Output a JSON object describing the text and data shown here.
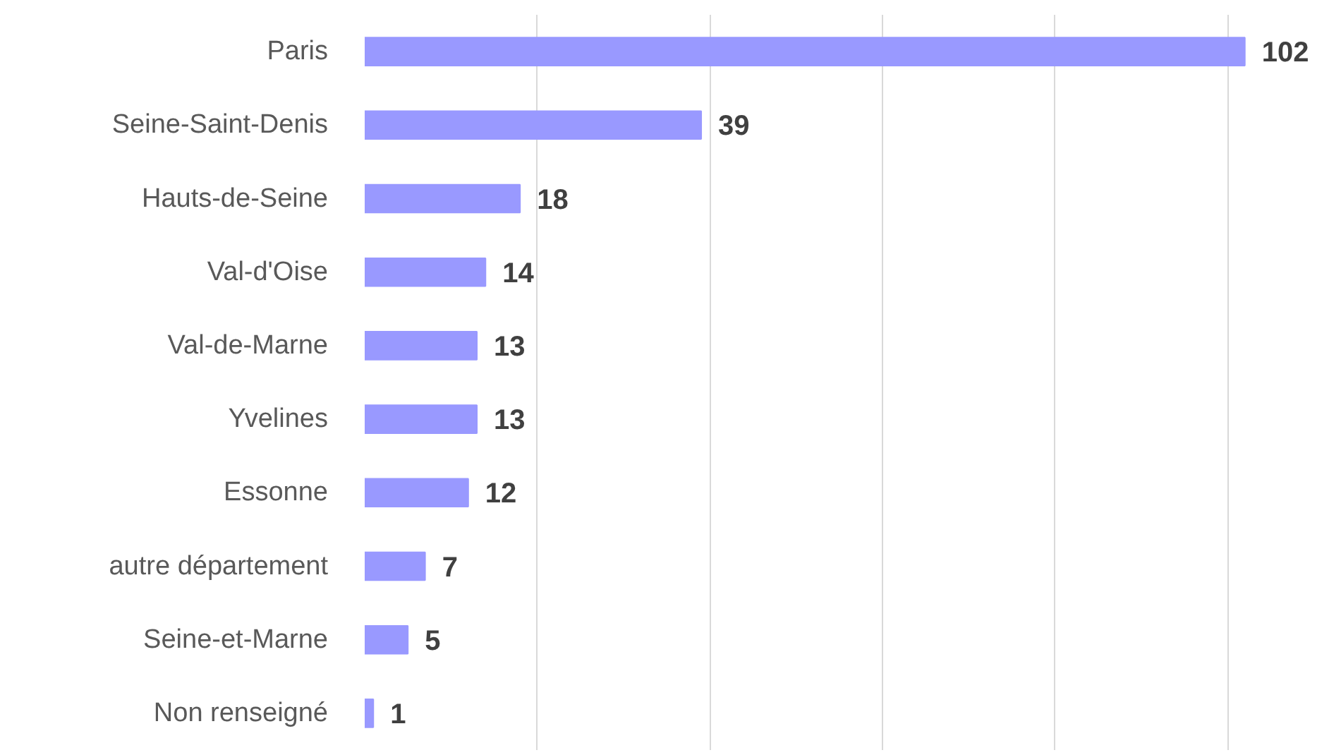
{
  "chart_data": {
    "type": "bar",
    "orientation": "horizontal",
    "categories": [
      "Paris",
      "Seine-Saint-Denis",
      "Hauts-de-Seine",
      "Val-d'Oise",
      "Val-de-Marne",
      "Yvelines",
      "Essonne",
      "autre département",
      "Seine-et-Marne",
      "Non renseigné"
    ],
    "values": [
      102,
      39,
      18,
      14,
      13,
      13,
      12,
      7,
      5,
      1
    ],
    "color": "#9999ff",
    "grid": "x",
    "tick_labels": "y",
    "data_labels": true
  }
}
